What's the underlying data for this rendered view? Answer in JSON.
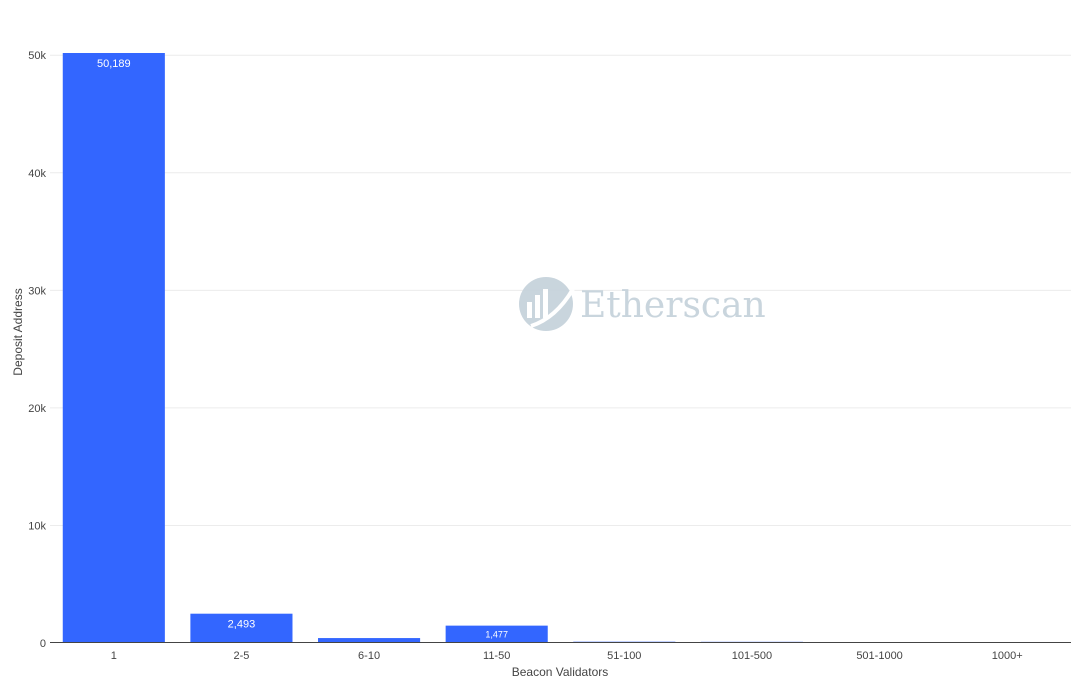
{
  "chart_data": {
    "type": "bar",
    "categories": [
      "1",
      "2-5",
      "6-10",
      "11-50",
      "51-100",
      "101-500",
      "501-1000",
      "1000+"
    ],
    "values": [
      50189,
      2493,
      420,
      1477,
      110,
      100,
      45,
      25
    ],
    "data_labels": [
      "50,189",
      "2,493",
      "",
      "1,477",
      "",
      "",
      "",
      ""
    ],
    "xlabel": "Beacon Validators",
    "ylabel": "Deposit Address",
    "ylim": [
      0,
      50189
    ],
    "yticks": [
      0,
      10000,
      20000,
      30000,
      40000,
      50000
    ],
    "ytick_labels": [
      "0",
      "10k",
      "20k",
      "30k",
      "40k",
      "50k"
    ],
    "grid": true,
    "bar_color": "#3366ff"
  },
  "watermark": {
    "text": "Etherscan",
    "icon": "etherscan-logo-icon",
    "color": "#c7d3dc"
  }
}
